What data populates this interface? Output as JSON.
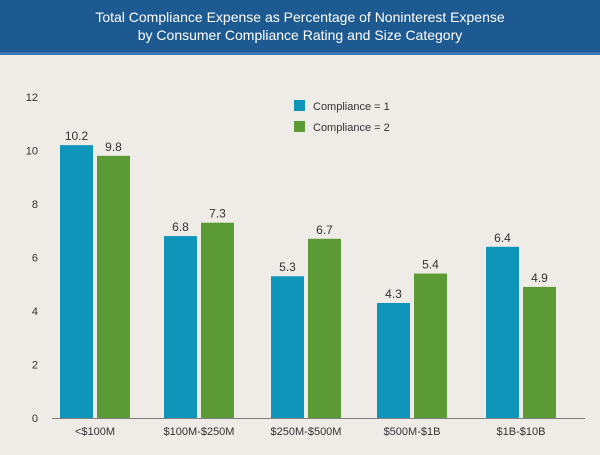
{
  "header": {
    "title_line1": "Total Compliance Expense as Percentage of Noninterest Expense",
    "title_line2": "by Consumer Compliance Rating and Size Category"
  },
  "colors": {
    "header_bg": "#1d5a91",
    "background": "#efebe7",
    "series_1": "#0f95b9",
    "series_2": "#5b9a35",
    "axis": "#7f7f7f",
    "text": "#333333"
  },
  "chart_data": {
    "type": "bar",
    "title": "Total Compliance Expense as Percentage of Noninterest Expense by Consumer Compliance Rating and Size Category",
    "categories": [
      "<$100M",
      "$100M-$250M",
      "$250M-$500M",
      "$500M-$1B",
      "$1B-$10B"
    ],
    "series": [
      {
        "name": "Compliance = 1",
        "values": [
          10.2,
          6.8,
          5.3,
          4.3,
          6.4
        ],
        "color": "#0f95b9"
      },
      {
        "name": "Compliance = 2",
        "values": [
          9.8,
          7.3,
          6.7,
          5.4,
          4.9
        ],
        "color": "#5b9a35"
      }
    ],
    "xlabel": "",
    "ylabel": "",
    "ylim": [
      0,
      12
    ],
    "yticks": [
      0,
      2,
      4,
      6,
      8,
      10,
      12
    ],
    "grid": false,
    "legend": "top-center",
    "data_labels": true
  }
}
